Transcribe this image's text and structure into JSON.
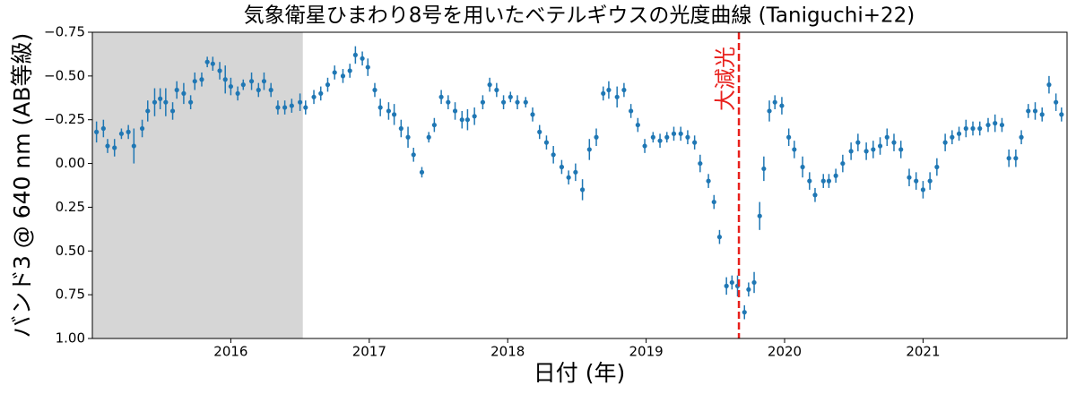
{
  "chart_data": {
    "type": "errorbar",
    "title": "気象衛星ひまわり8号を用いたベテルギウスの光度曲線 (Taniguchi+22)",
    "xlabel": "日付 (年)",
    "ylabel": "バンド3 @ 640 nm (AB等級)",
    "color": "#1f77b4",
    "shaded_span": [
      2015.0,
      2016.52
    ],
    "annotation": {
      "text": "大減光",
      "x": 2019.67,
      "color": "#e8201c"
    },
    "xlim": [
      2015.0,
      2022.04
    ],
    "xticks": [
      2016,
      2017,
      2018,
      2019,
      2020,
      2021
    ],
    "ylim": [
      1.0,
      -0.75
    ],
    "yticks": [
      {
        "value": -0.75,
        "label": "−0.75"
      },
      {
        "value": -0.5,
        "label": "−0.50"
      },
      {
        "value": -0.25,
        "label": "−0.25"
      },
      {
        "value": 0,
        "label": "0.00"
      },
      0.25,
      {
        "value": 0.5,
        "label": "0.50"
      },
      0.75,
      {
        "value": 1.0,
        "label": "1.00"
      }
    ],
    "x": [
      2015.03,
      2015.08,
      2015.11,
      2015.16,
      2015.21,
      2015.26,
      2015.3,
      2015.36,
      2015.4,
      2015.45,
      2015.49,
      2015.53,
      2015.58,
      2015.61,
      2015.66,
      2015.71,
      2015.74,
      2015.79,
      2015.83,
      2015.87,
      2015.92,
      2015.96,
      2016.0,
      2016.05,
      2016.09,
      2016.15,
      2016.2,
      2016.24,
      2016.29,
      2016.34,
      2016.39,
      2016.44,
      2016.5,
      2016.54,
      2016.6,
      2016.65,
      2016.7,
      2016.75,
      2016.81,
      2016.86,
      2016.9,
      2016.95,
      2016.99,
      2017.04,
      2017.08,
      2017.14,
      2017.18,
      2017.23,
      2017.28,
      2017.32,
      2017.38,
      2017.43,
      2017.47,
      2017.52,
      2017.57,
      2017.62,
      2017.67,
      2017.71,
      2017.76,
      2017.82,
      2017.87,
      2017.92,
      2017.97,
      2018.02,
      2018.07,
      2018.13,
      2018.18,
      2018.23,
      2018.28,
      2018.33,
      2018.39,
      2018.44,
      2018.49,
      2018.54,
      2018.59,
      2018.64,
      2018.69,
      2018.73,
      2018.79,
      2018.84,
      2018.89,
      2018.94,
      2018.99,
      2019.05,
      2019.1,
      2019.15,
      2019.2,
      2019.25,
      2019.3,
      2019.35,
      2019.39,
      2019.45,
      2019.49,
      2019.53,
      2019.58,
      2019.62,
      2019.66,
      2019.71,
      2019.74,
      2019.78,
      2019.82,
      2019.85,
      2019.89,
      2019.93,
      2019.98,
      2020.03,
      2020.07,
      2020.13,
      2020.18,
      2020.22,
      2020.28,
      2020.32,
      2020.37,
      2020.42,
      2020.48,
      2020.53,
      2020.59,
      2020.64,
      2020.69,
      2020.74,
      2020.79,
      2020.84,
      2020.9,
      2020.95,
      2021.0,
      2021.05,
      2021.1,
      2021.16,
      2021.21,
      2021.26,
      2021.31,
      2021.36,
      2021.41,
      2021.47,
      2021.52,
      2021.57,
      2021.62,
      2021.67,
      2021.71,
      2021.76,
      2021.81,
      2021.86,
      2021.91,
      2021.96,
      2022.0
    ],
    "values": [
      -0.18,
      -0.2,
      -0.1,
      -0.09,
      -0.17,
      -0.18,
      -0.1,
      -0.2,
      -0.3,
      -0.35,
      -0.37,
      -0.35,
      -0.3,
      -0.42,
      -0.4,
      -0.35,
      -0.47,
      -0.48,
      -0.58,
      -0.57,
      -0.53,
      -0.48,
      -0.44,
      -0.4,
      -0.45,
      -0.47,
      -0.42,
      -0.47,
      -0.42,
      -0.32,
      -0.32,
      -0.33,
      -0.35,
      -0.32,
      -0.38,
      -0.4,
      -0.45,
      -0.52,
      -0.5,
      -0.53,
      -0.62,
      -0.6,
      -0.55,
      -0.42,
      -0.32,
      -0.3,
      -0.28,
      -0.2,
      -0.15,
      -0.05,
      0.05,
      -0.15,
      -0.22,
      -0.38,
      -0.35,
      -0.3,
      -0.25,
      -0.25,
      -0.27,
      -0.35,
      -0.45,
      -0.42,
      -0.35,
      -0.38,
      -0.35,
      -0.35,
      -0.28,
      -0.18,
      -0.12,
      -0.05,
      0.02,
      0.08,
      0.05,
      0.15,
      -0.08,
      -0.15,
      -0.4,
      -0.42,
      -0.38,
      -0.42,
      -0.3,
      -0.22,
      -0.1,
      -0.15,
      -0.13,
      -0.15,
      -0.17,
      -0.17,
      -0.15,
      -0.12,
      0.0,
      0.1,
      0.22,
      0.42,
      0.7,
      0.68,
      0.7,
      0.85,
      0.72,
      0.68,
      0.3,
      0.03,
      -0.3,
      -0.35,
      -0.33,
      -0.15,
      -0.08,
      0.02,
      0.1,
      0.18,
      0.1,
      0.1,
      0.07,
      0.0,
      -0.07,
      -0.12,
      -0.07,
      -0.08,
      -0.1,
      -0.15,
      -0.12,
      -0.08,
      0.08,
      0.1,
      0.15,
      0.1,
      0.02,
      -0.12,
      -0.15,
      -0.17,
      -0.2,
      -0.2,
      -0.2,
      -0.22,
      -0.23,
      -0.22,
      -0.03,
      -0.03,
      -0.15,
      -0.3,
      -0.3,
      -0.28,
      -0.45,
      -0.35,
      -0.28
    ],
    "errors": [
      0.06,
      0.05,
      0.04,
      0.05,
      0.03,
      0.04,
      0.1,
      0.05,
      0.06,
      0.08,
      0.06,
      0.08,
      0.05,
      0.05,
      0.06,
      0.04,
      0.05,
      0.04,
      0.03,
      0.04,
      0.05,
      0.08,
      0.05,
      0.04,
      0.03,
      0.05,
      0.04,
      0.05,
      0.04,
      0.04,
      0.04,
      0.04,
      0.05,
      0.04,
      0.04,
      0.04,
      0.04,
      0.04,
      0.04,
      0.04,
      0.05,
      0.04,
      0.05,
      0.04,
      0.05,
      0.05,
      0.06,
      0.05,
      0.06,
      0.04,
      0.03,
      0.03,
      0.04,
      0.04,
      0.04,
      0.05,
      0.05,
      0.06,
      0.05,
      0.04,
      0.04,
      0.04,
      0.04,
      0.03,
      0.04,
      0.03,
      0.04,
      0.04,
      0.04,
      0.05,
      0.04,
      0.04,
      0.05,
      0.06,
      0.06,
      0.05,
      0.04,
      0.05,
      0.06,
      0.04,
      0.04,
      0.04,
      0.04,
      0.03,
      0.04,
      0.03,
      0.04,
      0.04,
      0.04,
      0.04,
      0.05,
      0.04,
      0.04,
      0.04,
      0.05,
      0.04,
      0.06,
      0.04,
      0.04,
      0.06,
      0.08,
      0.07,
      0.06,
      0.04,
      0.05,
      0.05,
      0.05,
      0.06,
      0.05,
      0.04,
      0.04,
      0.04,
      0.04,
      0.05,
      0.05,
      0.05,
      0.05,
      0.05,
      0.05,
      0.05,
      0.05,
      0.05,
      0.05,
      0.05,
      0.05,
      0.05,
      0.05,
      0.05,
      0.04,
      0.04,
      0.05,
      0.04,
      0.04,
      0.04,
      0.05,
      0.04,
      0.05,
      0.05,
      0.04,
      0.04,
      0.05,
      0.04,
      0.05,
      0.05,
      0.04
    ]
  }
}
